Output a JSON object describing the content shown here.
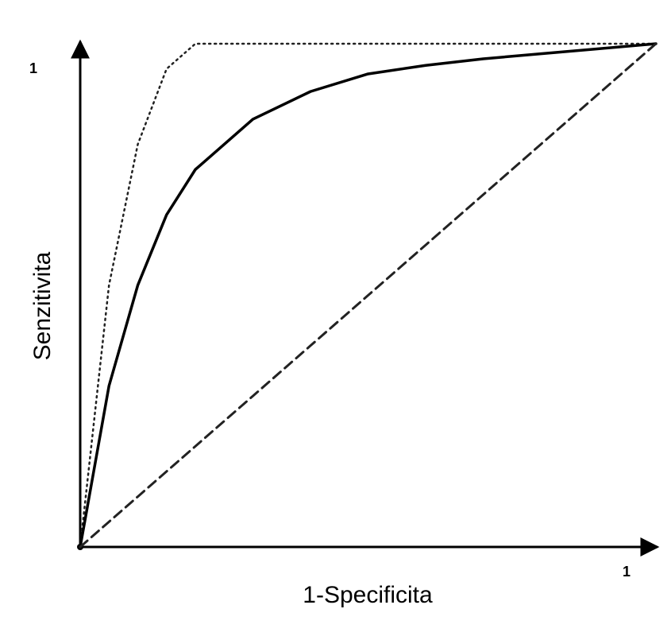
{
  "chart_data": {
    "type": "line",
    "x_label": "1-Specificita",
    "y_label": "Senzitivita",
    "x": [
      0,
      0.05,
      0.1,
      0.15,
      0.2,
      0.3,
      0.4,
      0.5,
      0.6,
      0.7,
      0.8,
      0.9,
      1
    ],
    "series": [
      {
        "color": "#222222",
        "style": "dotted",
        "values": [
          0,
          0.52,
          0.8,
          0.95,
          1,
          1,
          1,
          1,
          1,
          1,
          1,
          1,
          1
        ]
      },
      {
        "color": "#000000",
        "style": "solid",
        "values": [
          0,
          0.32,
          0.52,
          0.66,
          0.75,
          0.85,
          0.905,
          0.94,
          0.957,
          0.97,
          0.98,
          0.99,
          1
        ]
      },
      {
        "color": "#222222",
        "style": "dashed",
        "values": [
          0,
          0.05,
          0.1,
          0.15,
          0.2,
          0.3,
          0.4,
          0.5,
          0.6,
          0.7,
          0.8,
          0.9,
          1
        ]
      }
    ],
    "xlim": [
      0,
      1
    ],
    "ylim": [
      0,
      1
    ],
    "xticks": [
      1
    ],
    "yticks": [
      1
    ],
    "grid": false
  }
}
